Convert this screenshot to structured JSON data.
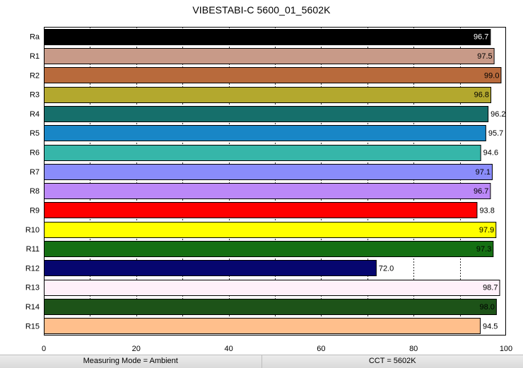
{
  "title": "VIBESTABI-C 5600_01_5602K",
  "status": {
    "measuring_mode": "Measuring Mode = Ambient",
    "cct": "CCT = 5602K"
  },
  "chart_data": {
    "type": "bar",
    "orientation": "horizontal",
    "title": "VIBESTABI-C 5600_01_5602K",
    "xlabel": "",
    "ylabel": "",
    "xlim": [
      0,
      100
    ],
    "x_ticks": [
      0,
      20,
      40,
      60,
      80,
      100
    ],
    "grid": "vertical dashed",
    "categories": [
      "Ra",
      "R1",
      "R2",
      "R3",
      "R4",
      "R5",
      "R6",
      "R7",
      "R8",
      "R9",
      "R10",
      "R11",
      "R12",
      "R13",
      "R14",
      "R15"
    ],
    "values": [
      96.7,
      97.5,
      99.0,
      96.8,
      96.2,
      95.7,
      94.6,
      97.1,
      96.7,
      93.8,
      97.9,
      97.3,
      72.0,
      98.7,
      98.0,
      94.5
    ],
    "labels": [
      "96.7",
      "97.5",
      "99.0",
      "96.8",
      "96.2",
      "95.7",
      "94.6",
      "97.1",
      "96.7",
      "93.8",
      "97.9",
      "97.3",
      "72.0",
      "98.7",
      "98.0",
      "94.5"
    ],
    "colors": [
      "#000000",
      "#c89a88",
      "#b86a3c",
      "#b3a82e",
      "#166f6b",
      "#1886c6",
      "#36b6a9",
      "#8a8cfb",
      "#bb88f8",
      "#ff0000",
      "#ffff00",
      "#157013",
      "#06066f",
      "#fff0fa",
      "#1d5318",
      "#ffbf8c"
    ]
  }
}
